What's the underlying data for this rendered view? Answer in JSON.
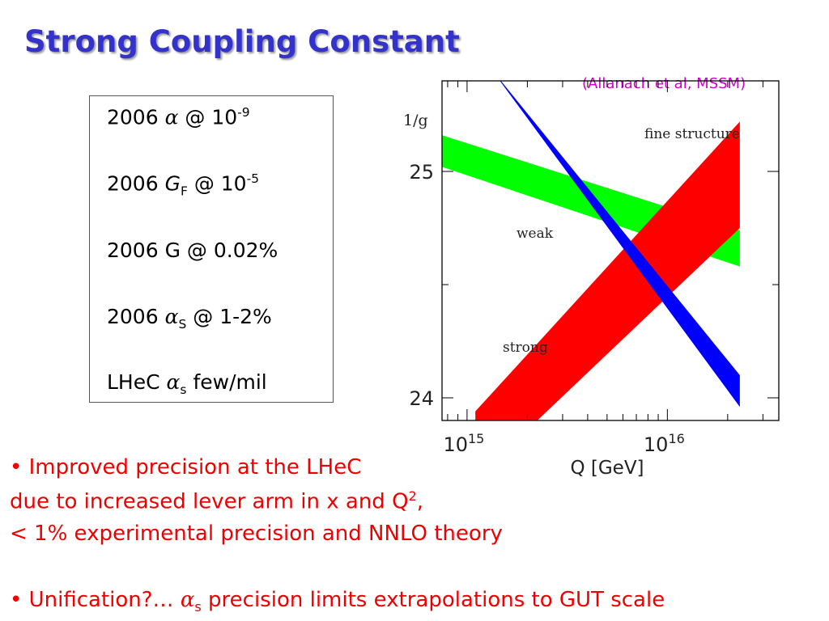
{
  "slide": {
    "title": "Strong Coupling Constant",
    "citation": "(Allanach et al, MSSM)"
  },
  "precision_box": {
    "lines": [
      {
        "year": "2006",
        "symbol": "α",
        "sub": "",
        "sup_base": "@ 10",
        "exp": "-9",
        "tail": ""
      },
      {
        "year": "2006",
        "symbol": "G",
        "sub": "F",
        "sup_base": "@ 10",
        "exp": "-5",
        "tail": ""
      },
      {
        "year": "2006",
        "symbol": "G",
        "sub": "",
        "sup_base": "",
        "exp": "",
        "tail": "@ 0.02%"
      },
      {
        "year": "2006",
        "symbol": "α",
        "sub": "S",
        "sup_base": "",
        "exp": "",
        "tail": "@ 1-2%"
      },
      {
        "year": "LHeC",
        "symbol": "α",
        "sub": "s",
        "sup_base": "",
        "exp": "",
        "tail": "few/mil"
      }
    ]
  },
  "bullets": {
    "b1_line1": "• Improved precision at the LHeC",
    "b1_line2_pre": "due to increased lever arm in x and Q",
    "b1_line2_sup": "2",
    "b1_line2_post": ",",
    "b1_line3": "< 1% experimental precision and NNLO theory",
    "b2_pre": "• Unification?… ",
    "b2_symbol": "α",
    "b2_sub": "s",
    "b2_post": " precision limits extrapolations to GUT scale"
  },
  "chart_data": {
    "type": "area",
    "ylabel": "1/g",
    "xlabel": "Q [GeV]",
    "x_scale": "log",
    "xlim": [
      750000000000000.0,
      3.6e+16
    ],
    "ylim": [
      23.9,
      25.4
    ],
    "x_ticks": [
      {
        "value": 1000000000000000.0,
        "base": "10",
        "exp": "15"
      },
      {
        "value": 1e+16,
        "base": "10",
        "exp": "16"
      }
    ],
    "y_ticks": [
      24,
      25
    ],
    "series": [
      {
        "name": "fine structure",
        "color": "#0000ff",
        "x": [
          1300000000000000.0,
          2.3e+16
        ],
        "lower": [
          25.46,
          23.96
        ],
        "upper": [
          25.46,
          24.1
        ]
      },
      {
        "name": "weak",
        "color": "#00ff00",
        "x": [
          750000000000000.0,
          2.3e+16
        ],
        "lower": [
          25.02,
          24.58
        ],
        "upper": [
          25.16,
          24.74
        ]
      },
      {
        "name": "strong",
        "color": "#ff0000",
        "x": [
          1100000000000000.0,
          2.3e+16
        ],
        "lower": [
          23.64,
          24.75
        ],
        "upper": [
          23.94,
          25.22
        ]
      }
    ]
  }
}
